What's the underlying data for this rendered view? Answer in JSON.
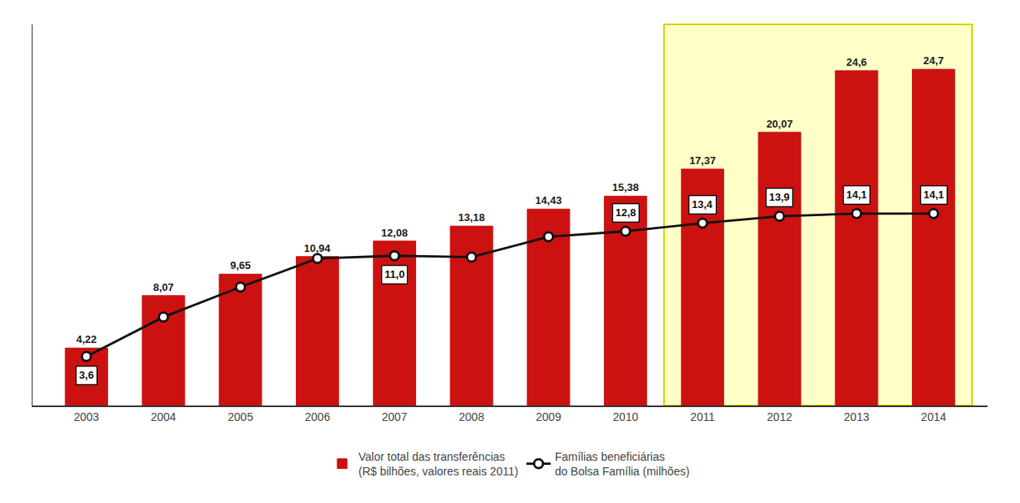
{
  "chart_data": {
    "type": "bar",
    "categories": [
      "2003",
      "2004",
      "2005",
      "2006",
      "2007",
      "2008",
      "2009",
      "2010",
      "2011",
      "2012",
      "2013",
      "2014"
    ],
    "series": [
      {
        "name": "Valor total das transferências\n(R$ bilhões, valores reais 2011)",
        "type": "bar",
        "color": "#cc1111",
        "values": [
          4.22,
          8.07,
          9.65,
          10.94,
          12.08,
          13.18,
          14.43,
          15.38,
          17.37,
          20.07,
          24.6,
          24.7
        ],
        "value_labels": [
          "4,22",
          "8,07",
          "9,65",
          "10,94",
          "12,08",
          "13,18",
          "14,43",
          "15,38",
          "17,37",
          "20,07",
          "24,6",
          "24,7"
        ]
      },
      {
        "name": "Famílias beneficiárias\ndo Bolsa Família (milhões)",
        "type": "line",
        "color": "#111111",
        "marker": "circle",
        "values": [
          3.6,
          6.5,
          8.7,
          10.8,
          11.0,
          10.9,
          12.4,
          12.8,
          13.4,
          13.9,
          14.1,
          14.1
        ],
        "value_labels": [
          "3,6",
          null,
          null,
          null,
          "11,0",
          null,
          null,
          "12,8",
          "13,4",
          "13,9",
          "14,1",
          "14,1"
        ]
      }
    ],
    "ylim": [
      0,
      28
    ],
    "yticks": [],
    "tick_labels": "x",
    "data_labels": true,
    "grid": false,
    "legend": "bottom"
  }
}
